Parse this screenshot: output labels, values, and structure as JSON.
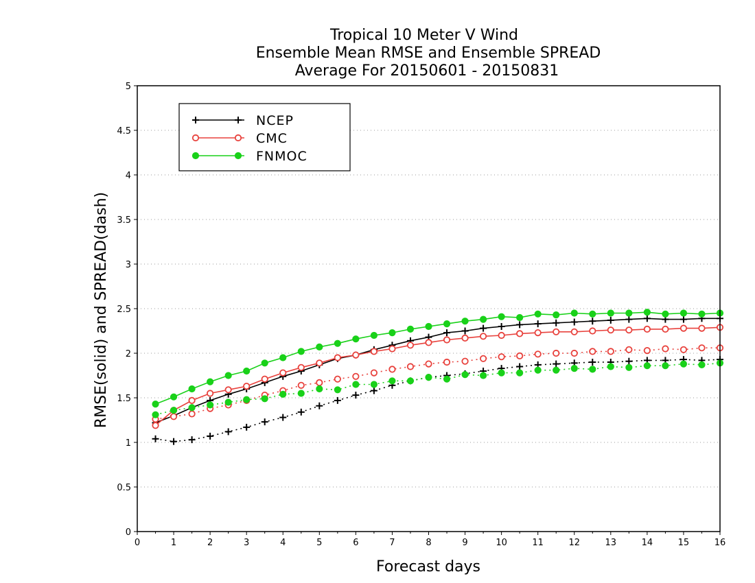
{
  "chart_data": {
    "type": "line",
    "title": [
      "Tropical 10 Meter V Wind",
      "Ensemble Mean RMSE and Ensemble SPREAD",
      "Average For 20150601 - 20150831"
    ],
    "xlabel": "Forecast days",
    "ylabel": "RMSE(solid) and SPREAD(dash)",
    "xlim": [
      0,
      16
    ],
    "ylim": [
      0,
      5
    ],
    "xticks": [
      0,
      1,
      2,
      3,
      4,
      5,
      6,
      7,
      8,
      9,
      10,
      11,
      12,
      13,
      14,
      15,
      16
    ],
    "yticks": [
      0,
      0.5,
      1,
      1.5,
      2,
      2.5,
      3,
      3.5,
      4,
      4.5,
      5
    ],
    "grid": true,
    "legend_position": "top-left",
    "x": [
      0.5,
      1,
      1.5,
      2,
      2.5,
      3,
      3.5,
      4,
      4.5,
      5,
      5.5,
      6,
      6.5,
      7,
      7.5,
      8,
      8.5,
      9,
      9.5,
      10,
      10.5,
      11,
      11.5,
      12,
      12.5,
      13,
      13.5,
      14,
      14.5,
      15,
      15.5,
      16
    ],
    "series": [
      {
        "name": "NCEP",
        "color": "#000000",
        "marker": "plus",
        "rmse": [
          1.22,
          1.3,
          1.39,
          1.47,
          1.54,
          1.6,
          1.67,
          1.74,
          1.8,
          1.87,
          1.94,
          1.98,
          2.04,
          2.09,
          2.14,
          2.18,
          2.23,
          2.25,
          2.28,
          2.3,
          2.32,
          2.33,
          2.34,
          2.35,
          2.36,
          2.37,
          2.38,
          2.39,
          2.38,
          2.38,
          2.39,
          2.39
        ],
        "spread": [
          1.04,
          1.01,
          1.03,
          1.07,
          1.12,
          1.17,
          1.23,
          1.28,
          1.34,
          1.41,
          1.47,
          1.53,
          1.58,
          1.64,
          1.69,
          1.73,
          1.75,
          1.77,
          1.8,
          1.83,
          1.85,
          1.87,
          1.88,
          1.89,
          1.9,
          1.9,
          1.91,
          1.92,
          1.92,
          1.93,
          1.92,
          1.93
        ]
      },
      {
        "name": "CMC",
        "color": "#e8413c",
        "marker": "open-circle",
        "rmse": [
          1.19,
          1.36,
          1.47,
          1.55,
          1.59,
          1.63,
          1.71,
          1.78,
          1.84,
          1.89,
          1.95,
          1.98,
          2.02,
          2.05,
          2.09,
          2.12,
          2.15,
          2.17,
          2.19,
          2.2,
          2.22,
          2.23,
          2.24,
          2.24,
          2.25,
          2.26,
          2.26,
          2.27,
          2.27,
          2.28,
          2.28,
          2.29
        ],
        "spread": [
          1.26,
          1.29,
          1.32,
          1.38,
          1.42,
          1.47,
          1.53,
          1.58,
          1.64,
          1.67,
          1.71,
          1.74,
          1.78,
          1.82,
          1.85,
          1.88,
          1.9,
          1.91,
          1.94,
          1.96,
          1.97,
          1.99,
          2.0,
          2.0,
          2.02,
          2.02,
          2.04,
          2.03,
          2.05,
          2.04,
          2.06,
          2.06
        ]
      },
      {
        "name": "FNMOC",
        "color": "#19d119",
        "marker": "filled-circle",
        "rmse": [
          1.43,
          1.51,
          1.6,
          1.68,
          1.75,
          1.8,
          1.89,
          1.95,
          2.02,
          2.07,
          2.11,
          2.16,
          2.2,
          2.23,
          2.27,
          2.3,
          2.33,
          2.36,
          2.38,
          2.41,
          2.4,
          2.44,
          2.43,
          2.45,
          2.44,
          2.45,
          2.45,
          2.46,
          2.44,
          2.45,
          2.44,
          2.45
        ],
        "spread": [
          1.31,
          1.36,
          1.39,
          1.42,
          1.45,
          1.48,
          1.49,
          1.54,
          1.55,
          1.6,
          1.59,
          1.65,
          1.65,
          1.69,
          1.69,
          1.73,
          1.71,
          1.76,
          1.75,
          1.78,
          1.78,
          1.81,
          1.81,
          1.83,
          1.82,
          1.85,
          1.84,
          1.86,
          1.86,
          1.88,
          1.87,
          1.89
        ]
      }
    ]
  }
}
